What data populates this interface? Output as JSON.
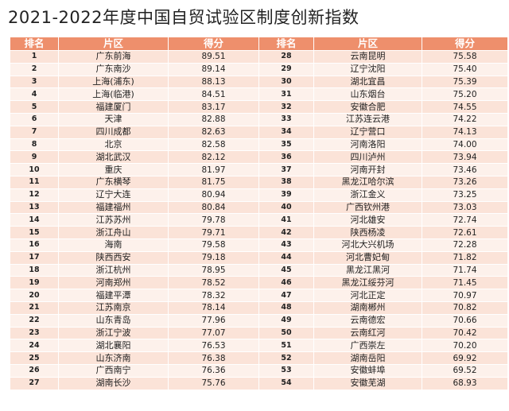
{
  "title": "2021-2022年度中国自贸试验区制度创新指数",
  "headers": [
    "排名",
    "片区",
    "得分",
    "排名",
    "片区",
    "得分"
  ],
  "rows": [
    {
      "rank": "1",
      "name": "广东前海",
      "score": "89.51"
    },
    {
      "rank": "2",
      "name": "广东南沙",
      "score": "89.14"
    },
    {
      "rank": "3",
      "name": "上海(浦东)",
      "score": "88.13"
    },
    {
      "rank": "4",
      "name": "上海(临港)",
      "score": "84.51"
    },
    {
      "rank": "5",
      "name": "福建厦门",
      "score": "83.17"
    },
    {
      "rank": "6",
      "name": "天津",
      "score": "82.88"
    },
    {
      "rank": "7",
      "name": "四川成都",
      "score": "82.63"
    },
    {
      "rank": "8",
      "name": "北京",
      "score": "82.58"
    },
    {
      "rank": "9",
      "name": "湖北武汉",
      "score": "82.12"
    },
    {
      "rank": "10",
      "name": "重庆",
      "score": "81.97"
    },
    {
      "rank": "11",
      "name": "广东横琴",
      "score": "81.75"
    },
    {
      "rank": "12",
      "name": "辽宁大连",
      "score": "80.94"
    },
    {
      "rank": "13",
      "name": "福建福州",
      "score": "80.84"
    },
    {
      "rank": "14",
      "name": "江苏苏州",
      "score": "79.78"
    },
    {
      "rank": "15",
      "name": "浙江舟山",
      "score": "79.71"
    },
    {
      "rank": "16",
      "name": "海南",
      "score": "79.58"
    },
    {
      "rank": "17",
      "name": "陕西西安",
      "score": "79.18"
    },
    {
      "rank": "18",
      "name": "浙江杭州",
      "score": "78.95"
    },
    {
      "rank": "19",
      "name": "河南郑州",
      "score": "78.52"
    },
    {
      "rank": "20",
      "name": "福建平潭",
      "score": "78.32"
    },
    {
      "rank": "21",
      "name": "江苏南京",
      "score": "78.14"
    },
    {
      "rank": "22",
      "name": "山东青岛",
      "score": "77.96"
    },
    {
      "rank": "23",
      "name": "浙江宁波",
      "score": "77.07"
    },
    {
      "rank": "24",
      "name": "湖北襄阳",
      "score": "76.53"
    },
    {
      "rank": "25",
      "name": "山东济南",
      "score": "76.38"
    },
    {
      "rank": "26",
      "name": "广西南宁",
      "score": "76.36"
    },
    {
      "rank": "27",
      "name": "湖南长沙",
      "score": "75.76"
    },
    {
      "rank": "28",
      "name": "云南昆明",
      "score": "75.58"
    },
    {
      "rank": "29",
      "name": "辽宁沈阳",
      "score": "75.40"
    },
    {
      "rank": "30",
      "name": "湖北宜昌",
      "score": "75.39"
    },
    {
      "rank": "31",
      "name": "山东烟台",
      "score": "75.20"
    },
    {
      "rank": "32",
      "name": "安徽合肥",
      "score": "74.55"
    },
    {
      "rank": "33",
      "name": "江苏连云港",
      "score": "74.22"
    },
    {
      "rank": "34",
      "name": "辽宁营口",
      "score": "74.13"
    },
    {
      "rank": "35",
      "name": "河南洛阳",
      "score": "74.00"
    },
    {
      "rank": "36",
      "name": "四川泸州",
      "score": "73.94"
    },
    {
      "rank": "37",
      "name": "河南开封",
      "score": "73.46"
    },
    {
      "rank": "38",
      "name": "黑龙江哈尔滨",
      "score": "73.26"
    },
    {
      "rank": "39",
      "name": "浙江金义",
      "score": "73.25"
    },
    {
      "rank": "40",
      "name": "广西钦州港",
      "score": "73.03"
    },
    {
      "rank": "41",
      "name": "河北雄安",
      "score": "72.74"
    },
    {
      "rank": "42",
      "name": "陕西杨凌",
      "score": "72.61"
    },
    {
      "rank": "43",
      "name": "河北大兴机场",
      "score": "72.28"
    },
    {
      "rank": "44",
      "name": "河北曹妃甸",
      "score": "71.82"
    },
    {
      "rank": "45",
      "name": "黑龙江黑河",
      "score": "71.74"
    },
    {
      "rank": "46",
      "name": "黑龙江绥芬河",
      "score": "71.45"
    },
    {
      "rank": "47",
      "name": "河北正定",
      "score": "70.97"
    },
    {
      "rank": "48",
      "name": "湖南郴州",
      "score": "70.82"
    },
    {
      "rank": "49",
      "name": "云南德宏",
      "score": "70.66"
    },
    {
      "rank": "50",
      "name": "云南红河",
      "score": "70.42"
    },
    {
      "rank": "51",
      "name": "广西崇左",
      "score": "70.20"
    },
    {
      "rank": "52",
      "name": "湖南岳阳",
      "score": "69.92"
    },
    {
      "rank": "53",
      "name": "安徽蚌埠",
      "score": "69.52"
    },
    {
      "rank": "54",
      "name": "安徽芜湖",
      "score": "68.93"
    }
  ]
}
